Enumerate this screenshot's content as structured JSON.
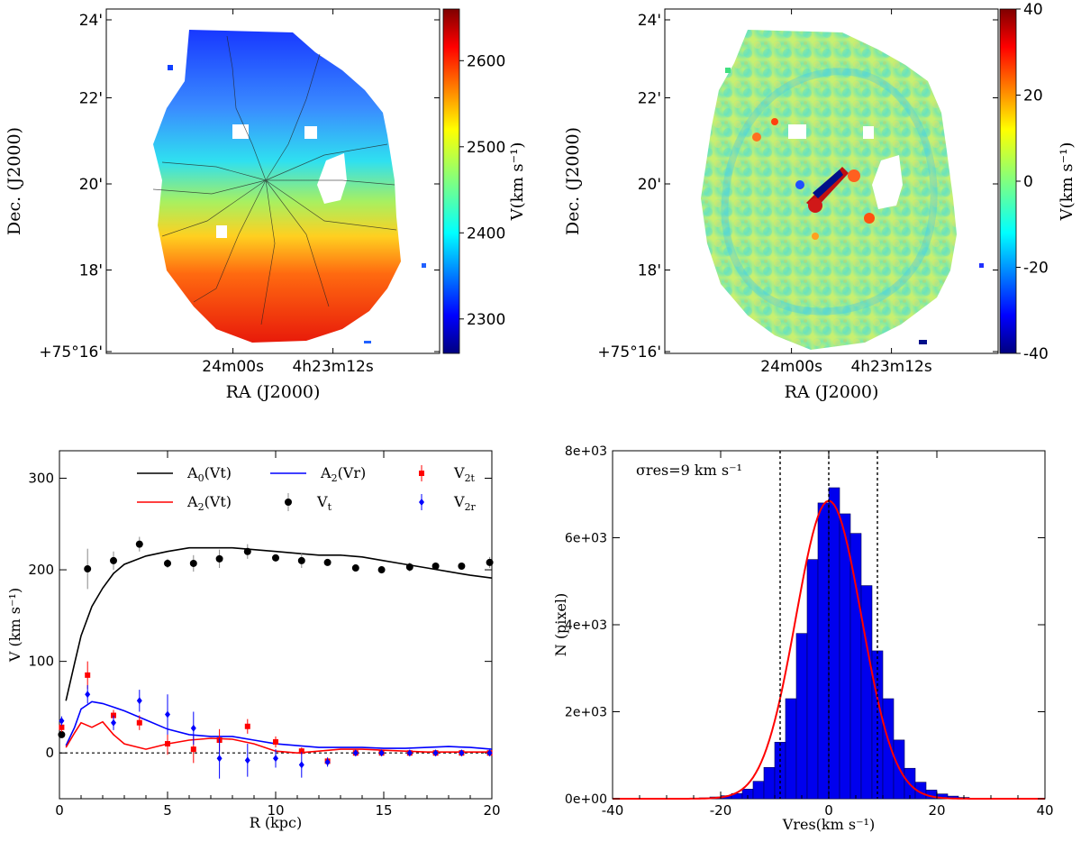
{
  "chart_data": [
    {
      "id": "velocity-field",
      "type": "heatmap",
      "xlabel": "RA (J2000)",
      "ylabel": "Dec. (J2000)",
      "xticks": [
        "24m00s",
        "4h23m12s"
      ],
      "yticks": [
        "+75°16'",
        "18'",
        "20'",
        "22'",
        "24'"
      ],
      "colorbar": {
        "label": "V(km s⁻¹)",
        "range": [
          2260,
          2660
        ],
        "ticks": [
          2300,
          2400,
          2500,
          2600
        ]
      }
    },
    {
      "id": "residual-field",
      "type": "heatmap",
      "xlabel": "RA (J2000)",
      "ylabel": "Dec. (J2000)",
      "xticks": [
        "24m00s",
        "4h23m12s"
      ],
      "yticks": [
        "+75°16'",
        "18'",
        "20'",
        "22'",
        "24'"
      ],
      "colorbar": {
        "label": "V(km s⁻¹)",
        "range": [
          -40,
          40
        ],
        "ticks": [
          -40,
          -20,
          0,
          20,
          40
        ]
      }
    },
    {
      "id": "rotation-curve",
      "type": "line",
      "xlabel": "R (kpc)",
      "ylabel": "V (km s⁻¹)",
      "xlim": [
        0,
        20
      ],
      "ylim": [
        -50,
        330
      ],
      "xticks": [
        0,
        5,
        10,
        15,
        20
      ],
      "yticks": [
        0,
        100,
        200,
        300
      ],
      "legend": [
        "A0(Vt)",
        "A2(Vr)",
        "V2t",
        "A2(Vt)",
        "Vt",
        "V2r"
      ],
      "series": [
        {
          "name": "A0(Vt)",
          "color": "#000000",
          "x": [
            0.3,
            0.7,
            1.0,
            1.5,
            2.0,
            2.5,
            3.0,
            4.0,
            5.0,
            6.0,
            7.0,
            8.0,
            9.0,
            10.0,
            11.0,
            12.0,
            13.0,
            14.0,
            15.0,
            16.0,
            17.0,
            18.0,
            19.0,
            20.0
          ],
          "y": [
            57,
            98,
            128,
            160,
            180,
            196,
            206,
            215,
            220,
            224,
            224,
            224,
            222,
            220,
            218,
            216,
            216,
            214,
            210,
            206,
            202,
            198,
            194,
            191
          ]
        },
        {
          "name": "A2(Vr)",
          "color": "#0000ff",
          "x": [
            0.3,
            0.7,
            1.0,
            1.5,
            2.0,
            2.5,
            3.0,
            4.0,
            5.0,
            6.0,
            7.0,
            8.0,
            9.0,
            10.0,
            11.0,
            12.0,
            13.0,
            14.0,
            15.0,
            16.0,
            17.0,
            18.0,
            19.0,
            20.0
          ],
          "y": [
            8,
            28,
            48,
            56,
            54,
            50,
            46,
            36,
            26,
            20,
            18,
            18,
            14,
            10,
            8,
            6,
            6,
            6,
            5,
            5,
            6,
            7,
            6,
            4
          ]
        },
        {
          "name": "A2(Vt)",
          "color": "#ff0000",
          "x": [
            0.3,
            0.7,
            1.0,
            1.5,
            2.0,
            2.5,
            3.0,
            4.0,
            5.0,
            6.0,
            7.0,
            8.0,
            9.0,
            10.0,
            11.0,
            12.0,
            13.0,
            14.0,
            15.0,
            16.0,
            17.0,
            18.0,
            19.0,
            20.0
          ],
          "y": [
            6,
            22,
            33,
            28,
            34,
            20,
            10,
            4,
            10,
            14,
            16,
            15,
            10,
            2,
            0,
            2,
            4,
            4,
            3,
            2,
            1,
            1,
            1,
            1
          ]
        }
      ],
      "points": [
        {
          "name": "Vt",
          "color": "#000000",
          "x": [
            0.1,
            1.3,
            2.5,
            3.7,
            5.0,
            6.2,
            7.4,
            8.7,
            10.0,
            11.2,
            12.4,
            13.7,
            14.9,
            16.2,
            17.4,
            18.6,
            19.9
          ],
          "y": [
            20,
            201,
            210,
            228,
            207,
            207,
            212,
            220,
            213,
            210,
            208,
            202,
            200,
            203,
            204,
            204,
            208
          ],
          "err": [
            2,
            22,
            10,
            8,
            5,
            9,
            10,
            8,
            4,
            8,
            3,
            4,
            4,
            5,
            4,
            3,
            6
          ]
        },
        {
          "name": "V2t",
          "color": "#ff0000",
          "x": [
            0.1,
            1.3,
            2.5,
            3.7,
            5.0,
            6.2,
            7.4,
            8.7,
            10.0,
            11.2,
            12.4,
            13.7,
            14.9,
            16.2,
            17.4,
            18.6,
            19.9
          ],
          "y": [
            28,
            85,
            41,
            33,
            10,
            4,
            14,
            29,
            12,
            2,
            -9,
            0,
            0,
            0,
            0,
            0,
            0
          ],
          "err": [
            5,
            15,
            6,
            8,
            12,
            15,
            12,
            8,
            6,
            4,
            4,
            2,
            2,
            2,
            2,
            2,
            2
          ]
        },
        {
          "name": "V2r",
          "color": "#0000ff",
          "x": [
            0.1,
            1.3,
            2.5,
            3.7,
            5.0,
            6.2,
            7.4,
            8.7,
            10.0,
            11.2,
            12.4,
            13.7,
            14.9,
            16.2,
            17.4,
            18.6,
            19.9
          ],
          "y": [
            35,
            64,
            33,
            57,
            42,
            27,
            -6,
            -8,
            -6,
            -13,
            -10,
            0,
            0,
            0,
            0,
            0,
            0
          ],
          "err": [
            5,
            10,
            8,
            12,
            22,
            18,
            22,
            18,
            10,
            14,
            5,
            2,
            2,
            2,
            2,
            2,
            2
          ]
        }
      ]
    },
    {
      "id": "residual-histogram",
      "type": "bar",
      "xlabel": "Vres(km s⁻¹)",
      "ylabel": "N (pixel)",
      "annotation": "σres=9 km s⁻¹",
      "xlim": [
        -40,
        40
      ],
      "ylim": [
        0,
        8000
      ],
      "xticks": [
        -40,
        -20,
        0,
        20,
        40
      ],
      "yticks": [
        "0e+00",
        "2e+03",
        "4e+03",
        "6e+03",
        "8e+03"
      ],
      "bin_width": 2,
      "bin_starts": [
        -24,
        -22,
        -20,
        -18,
        -16,
        -14,
        -12,
        -10,
        -8,
        -6,
        -4,
        -2,
        0,
        2,
        4,
        6,
        8,
        10,
        12,
        14,
        16,
        18,
        20,
        22,
        24
      ],
      "values": [
        20,
        40,
        70,
        120,
        220,
        400,
        720,
        1300,
        2300,
        3800,
        5500,
        6800,
        7150,
        6550,
        6100,
        4900,
        3400,
        2300,
        1350,
        700,
        380,
        200,
        110,
        60,
        30
      ],
      "fit": {
        "name": "Gaussian fit",
        "color": "#ff0000",
        "mean": 0,
        "sigma": 6.1,
        "peak": 6850
      },
      "vlines": [
        -9,
        0,
        9
      ]
    }
  ]
}
